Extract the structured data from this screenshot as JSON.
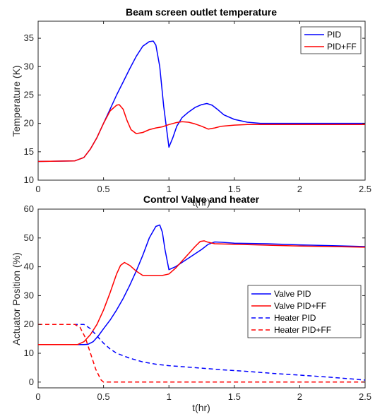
{
  "colors": {
    "blue": "#0000ff",
    "red": "#ff0000"
  },
  "chart_data": [
    {
      "type": "line",
      "title": "Beam screen outlet temperature",
      "xlabel": "t(hr)",
      "ylabel": "Temperature (K)",
      "xlim": [
        0,
        2.5
      ],
      "ylim": [
        10,
        38
      ],
      "xticks": [
        0,
        0.5,
        1,
        1.5,
        2,
        2.5
      ],
      "xtick_labels": [
        "0",
        "0.5",
        "1",
        "1.5",
        "2",
        "2.5"
      ],
      "yticks": [
        10,
        15,
        20,
        25,
        30,
        35
      ],
      "ytick_labels": [
        "10",
        "15",
        "20",
        "25",
        "30",
        "35"
      ],
      "grid": false,
      "legend_position": "top-right",
      "series": [
        {
          "name": "PID",
          "color": "#0000ff",
          "dash": false,
          "x": [
            0,
            0.28,
            0.35,
            0.4,
            0.45,
            0.5,
            0.55,
            0.6,
            0.65,
            0.7,
            0.75,
            0.8,
            0.85,
            0.88,
            0.9,
            0.93,
            0.96,
            1.0,
            1.03,
            1.06,
            1.1,
            1.15,
            1.2,
            1.25,
            1.29,
            1.33,
            1.37,
            1.42,
            1.5,
            1.6,
            1.7,
            1.8,
            2.0,
            2.2,
            2.5
          ],
          "y": [
            13.3,
            13.4,
            14.0,
            15.5,
            17.5,
            20.0,
            22.5,
            25.0,
            27.3,
            29.6,
            31.8,
            33.6,
            34.4,
            34.5,
            33.8,
            30.0,
            23.0,
            15.8,
            17.5,
            19.5,
            21.0,
            22.0,
            22.8,
            23.3,
            23.5,
            23.2,
            22.5,
            21.5,
            20.7,
            20.2,
            20.0,
            20.0,
            20.0,
            20.0,
            20.0
          ]
        },
        {
          "name": "PID+FF",
          "color": "#ff0000",
          "dash": false,
          "x": [
            0,
            0.28,
            0.35,
            0.4,
            0.45,
            0.5,
            0.55,
            0.6,
            0.62,
            0.65,
            0.68,
            0.71,
            0.75,
            0.8,
            0.85,
            0.9,
            0.95,
            1.0,
            1.05,
            1.1,
            1.15,
            1.2,
            1.25,
            1.3,
            1.35,
            1.4,
            1.5,
            1.6,
            1.7,
            1.8,
            2.0,
            2.2,
            2.5
          ],
          "y": [
            13.3,
            13.4,
            14.0,
            15.5,
            17.5,
            20.0,
            22.2,
            23.2,
            23.3,
            22.5,
            20.5,
            18.9,
            18.2,
            18.4,
            18.9,
            19.2,
            19.4,
            19.8,
            20.1,
            20.3,
            20.2,
            19.9,
            19.5,
            19.0,
            19.2,
            19.5,
            19.7,
            19.8,
            19.8,
            19.8,
            19.8,
            19.8,
            19.8
          ]
        }
      ]
    },
    {
      "type": "line",
      "title": "Control Valve and heater",
      "xlabel": "t(hr)",
      "ylabel": "Actuator Position (%)",
      "xlim": [
        0,
        2.5
      ],
      "ylim": [
        -2,
        60
      ],
      "xticks": [
        0,
        0.5,
        1,
        1.5,
        2,
        2.5
      ],
      "xtick_labels": [
        "0",
        "0.5",
        "1",
        "1.5",
        "2",
        "2.5"
      ],
      "yticks": [
        0,
        10,
        20,
        30,
        40,
        50,
        60
      ],
      "ytick_labels": [
        "0",
        "10",
        "20",
        "30",
        "40",
        "50",
        "60"
      ],
      "grid": false,
      "legend_position": "right",
      "series": [
        {
          "name": "Valve PID",
          "color": "#0000ff",
          "dash": false,
          "x": [
            0,
            0.35,
            0.38,
            0.42,
            0.46,
            0.5,
            0.55,
            0.6,
            0.65,
            0.7,
            0.75,
            0.8,
            0.85,
            0.9,
            0.93,
            0.95,
            0.97,
            1.0,
            1.05,
            1.1,
            1.15,
            1.2,
            1.25,
            1.3,
            1.35,
            1.4,
            1.5,
            1.75,
            2.0,
            2.25,
            2.5
          ],
          "y": [
            13,
            13,
            13.1,
            14,
            16,
            18.5,
            21.5,
            25,
            29,
            33.5,
            38.5,
            44,
            50,
            54,
            54.5,
            52,
            46,
            39,
            40,
            41.5,
            43,
            44.5,
            46,
            47.8,
            48.6,
            48.5,
            48.2,
            48.0,
            47.6,
            47.3,
            47.0
          ]
        },
        {
          "name": "Valve PID+FF",
          "color": "#ff0000",
          "dash": false,
          "x": [
            0,
            0.3,
            0.35,
            0.4,
            0.45,
            0.5,
            0.55,
            0.6,
            0.63,
            0.66,
            0.7,
            0.75,
            0.8,
            0.85,
            0.9,
            0.95,
            1.0,
            1.05,
            1.1,
            1.15,
            1.2,
            1.24,
            1.27,
            1.3,
            1.35,
            1.5,
            1.75,
            2.0,
            2.25,
            2.5
          ],
          "y": [
            13,
            13,
            14,
            16.5,
            20,
            25,
            31,
            37.5,
            40.5,
            41.5,
            40.5,
            38.5,
            37,
            37,
            37,
            37,
            37.5,
            39.5,
            42,
            44.5,
            47,
            48.8,
            49,
            48.5,
            48,
            47.8,
            47.5,
            47.2,
            47.0,
            46.8
          ]
        },
        {
          "name": "Heater PID",
          "color": "#0000ff",
          "dash": true,
          "x": [
            0,
            0.35,
            0.4,
            0.45,
            0.5,
            0.55,
            0.6,
            0.7,
            0.8,
            0.9,
            1.0,
            1.2,
            1.4,
            1.6,
            1.8,
            2.0,
            2.2,
            2.4,
            2.5
          ],
          "y": [
            20,
            20,
            18.5,
            16,
            13.5,
            11.5,
            10,
            8.3,
            7,
            6.2,
            5.7,
            5,
            4.3,
            3.7,
            3,
            2.4,
            1.8,
            1.1,
            0.7
          ]
        },
        {
          "name": "Heater PID+FF",
          "color": "#ff0000",
          "dash": true,
          "x": [
            0,
            0.28,
            0.32,
            0.36,
            0.4,
            0.44,
            0.48,
            0.5,
            1.0,
            1.5,
            2.0,
            2.5
          ],
          "y": [
            20,
            20,
            19,
            15.5,
            10,
            4.5,
            0.8,
            0,
            0,
            0,
            0,
            0
          ]
        }
      ]
    }
  ]
}
